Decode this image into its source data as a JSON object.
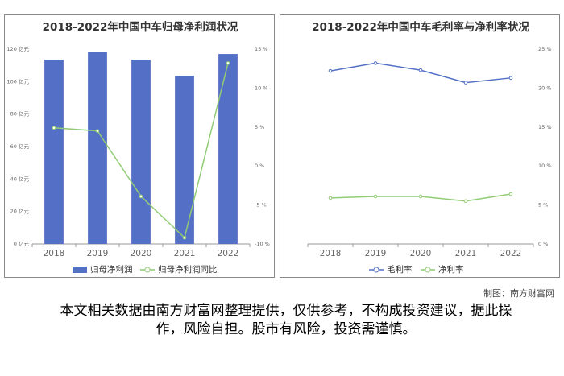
{
  "chart_data": [
    {
      "type": "bar",
      "title": "2018-2022年中国中车归母净利润状况",
      "categories": [
        "2018",
        "2019",
        "2020",
        "2021",
        "2022"
      ],
      "series": [
        {
          "name": "归母净利润",
          "color": "#5470c6",
          "type": "bar",
          "values": [
            113.5,
            118.5,
            113.5,
            103.5,
            117
          ]
        },
        {
          "name": "归母净利润同比",
          "color": "#91cc75",
          "type": "line",
          "axis": "y2",
          "values": [
            4.9,
            4.5,
            -3.9,
            -9.2,
            13.2
          ]
        }
      ],
      "ylim": [
        0,
        120
      ],
      "yticks": [
        {
          "value": 0,
          "label": "0 亿元"
        },
        {
          "value": 20,
          "label": "20 亿元"
        },
        {
          "value": 40,
          "label": "40 亿元"
        },
        {
          "value": 60,
          "label": "60 亿元"
        },
        {
          "value": 80,
          "label": "80 亿元"
        },
        {
          "value": 100,
          "label": "100 亿元"
        },
        {
          "value": 120,
          "label": "120 亿元"
        }
      ],
      "y2lim": [
        -10,
        15
      ],
      "y2ticks": [
        {
          "value": -10,
          "label": "-10 %"
        },
        {
          "value": -5,
          "label": "-5 %"
        },
        {
          "value": 0,
          "label": "0 %"
        },
        {
          "value": 5,
          "label": "5 %"
        },
        {
          "value": 10,
          "label": "10 %"
        },
        {
          "value": 15,
          "label": "15 %"
        }
      ],
      "grid": false,
      "legend": "bottom"
    },
    {
      "type": "line",
      "title": "2018-2022年中国中车毛利率与净利率状况",
      "categories": [
        "2018",
        "2019",
        "2020",
        "2021",
        "2022"
      ],
      "series": [
        {
          "name": "毛利率",
          "color": "#5470c6",
          "axis": "y2",
          "values": [
            22.2,
            23.2,
            22.3,
            20.7,
            21.3
          ]
        },
        {
          "name": "净利率",
          "color": "#91cc75",
          "axis": "y2",
          "values": [
            5.9,
            6.1,
            6.1,
            5.5,
            6.4
          ]
        }
      ],
      "y2lim": [
        0,
        25
      ],
      "y2ticks": [
        {
          "value": 0,
          "label": "0 %"
        },
        {
          "value": 5,
          "label": "5 %"
        },
        {
          "value": 10,
          "label": "10 %"
        },
        {
          "value": 15,
          "label": "15 %"
        },
        {
          "value": 20,
          "label": "20 %"
        },
        {
          "value": 25,
          "label": "25 %"
        }
      ],
      "grid": false,
      "legend": "bottom"
    }
  ],
  "credit": "制图：南方财富网",
  "disclaimer": "本文相关数据由南方财富网整理提供，仅供参考，不构成投资建议，据此操作，风险自担。股市有风险，投资需谨慎。"
}
